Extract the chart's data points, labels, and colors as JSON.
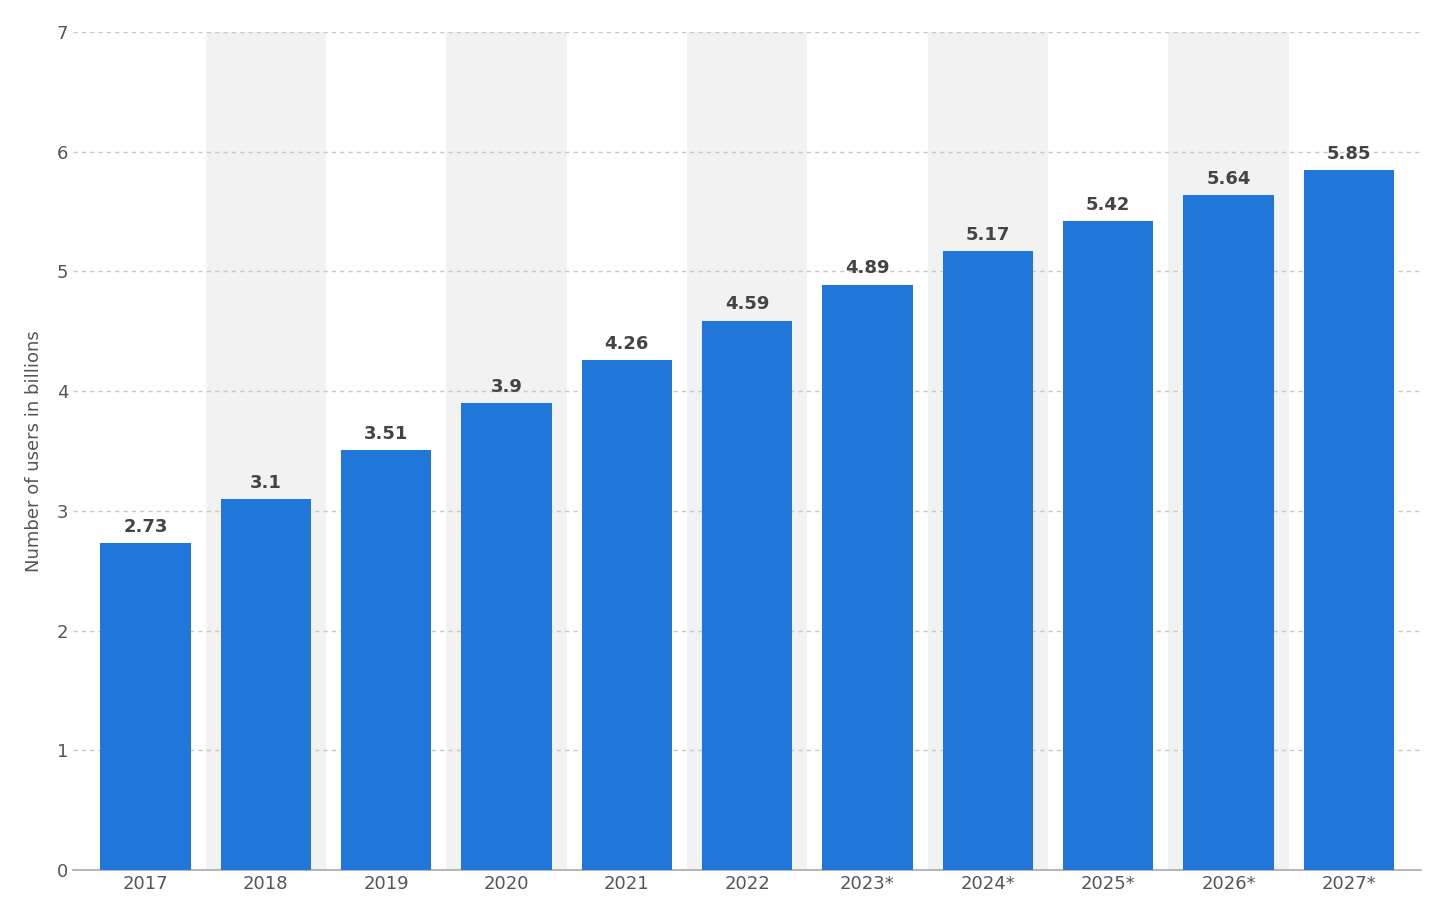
{
  "categories": [
    "2017",
    "2018",
    "2019",
    "2020",
    "2021",
    "2022",
    "2023*",
    "2024*",
    "2025*",
    "2026*",
    "2027*"
  ],
  "values": [
    2.73,
    3.1,
    3.51,
    3.9,
    4.26,
    4.59,
    4.89,
    5.17,
    5.42,
    5.64,
    5.85
  ],
  "bar_color": "#2176d9",
  "ylabel": "Number of users in billions",
  "ylim": [
    0,
    7
  ],
  "yticks": [
    0,
    1,
    2,
    3,
    4,
    5,
    6,
    7
  ],
  "background_color": "#ffffff",
  "plot_bg_color": "#ffffff",
  "grid_color": "#c8c8c8",
  "label_fontsize": 13,
  "tick_fontsize": 13,
  "value_fontsize": 13,
  "bar_width": 0.75,
  "stripe_color": "#f2f2f2",
  "stripe_indices": [
    1,
    3,
    5,
    7,
    9
  ]
}
